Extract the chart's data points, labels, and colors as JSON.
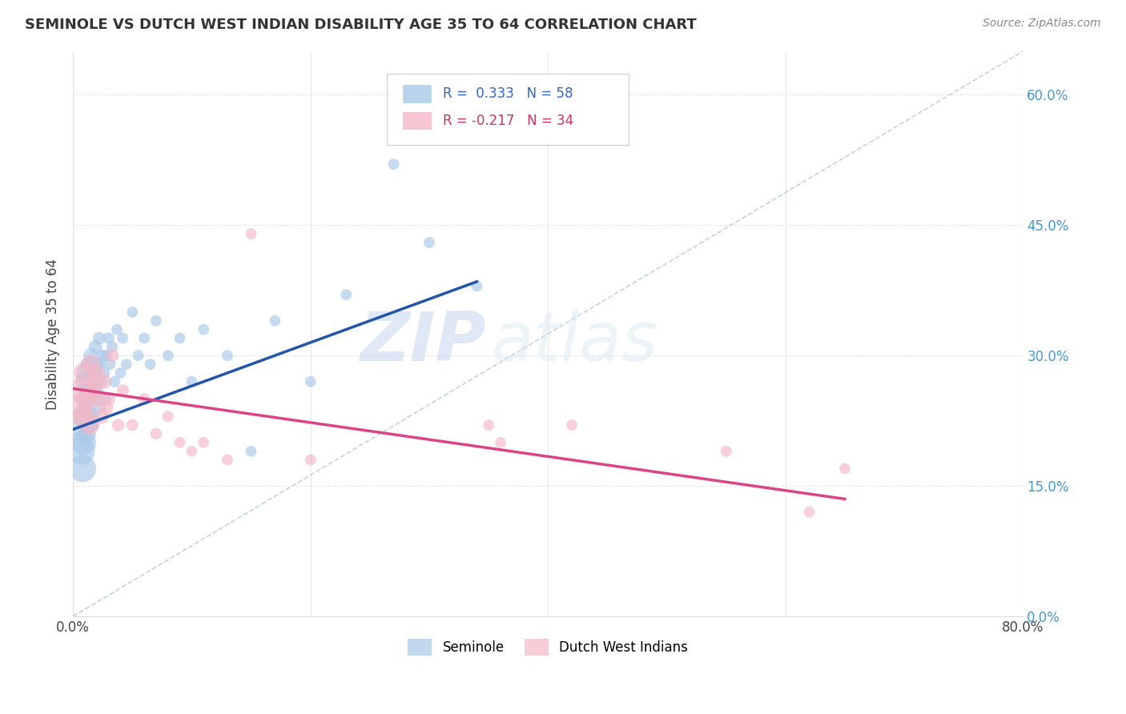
{
  "title": "SEMINOLE VS DUTCH WEST INDIAN DISABILITY AGE 35 TO 64 CORRELATION CHART",
  "source": "Source: ZipAtlas.com",
  "ylabel": "Disability Age 35 to 64",
  "xlim": [
    0.0,
    0.8
  ],
  "ylim": [
    0.0,
    0.65
  ],
  "xticks": [
    0.0,
    0.1,
    0.2,
    0.3,
    0.4,
    0.5,
    0.6,
    0.7,
    0.8
  ],
  "yticks": [
    0.0,
    0.15,
    0.3,
    0.45,
    0.6
  ],
  "legend_labels": [
    "Seminole",
    "Dutch West Indians"
  ],
  "legend_r_seminole": "R =  0.333",
  "legend_n_seminole": "N = 58",
  "legend_r_dutch": "R = -0.217",
  "legend_n_dutch": "N = 34",
  "seminole_color": "#a8c8e8",
  "dutch_color": "#f4b8c8",
  "seminole_line_color": "#2255aa",
  "dutch_line_color": "#dd4488",
  "ref_line_color": "#b8c8d8",
  "background_color": "#ffffff",
  "grid_color": "#e8e8ec",
  "watermark_zip": "ZIP",
  "watermark_atlas": "atlas",
  "seminole_x": [
    0.005,
    0.007,
    0.008,
    0.009,
    0.01,
    0.01,
    0.01,
    0.01,
    0.011,
    0.012,
    0.012,
    0.013,
    0.014,
    0.014,
    0.015,
    0.015,
    0.016,
    0.016,
    0.017,
    0.018,
    0.018,
    0.019,
    0.02,
    0.02,
    0.021,
    0.022,
    0.022,
    0.023,
    0.024,
    0.025,
    0.026,
    0.027,
    0.028,
    0.03,
    0.031,
    0.033,
    0.035,
    0.037,
    0.04,
    0.042,
    0.045,
    0.05,
    0.055,
    0.06,
    0.065,
    0.07,
    0.08,
    0.09,
    0.1,
    0.11,
    0.13,
    0.15,
    0.17,
    0.2,
    0.23,
    0.27,
    0.3,
    0.34
  ],
  "seminole_y": [
    0.22,
    0.19,
    0.17,
    0.2,
    0.23,
    0.25,
    0.27,
    0.28,
    0.24,
    0.21,
    0.26,
    0.29,
    0.22,
    0.25,
    0.28,
    0.3,
    0.22,
    0.26,
    0.23,
    0.25,
    0.28,
    0.31,
    0.26,
    0.29,
    0.27,
    0.32,
    0.29,
    0.24,
    0.27,
    0.3,
    0.28,
    0.25,
    0.3,
    0.32,
    0.29,
    0.31,
    0.27,
    0.33,
    0.28,
    0.32,
    0.29,
    0.35,
    0.3,
    0.32,
    0.29,
    0.34,
    0.3,
    0.32,
    0.27,
    0.33,
    0.3,
    0.19,
    0.34,
    0.27,
    0.37,
    0.52,
    0.43,
    0.38
  ],
  "seminole_sizes": [
    800,
    600,
    600,
    500,
    500,
    300,
    300,
    250,
    250,
    250,
    200,
    200,
    200,
    180,
    180,
    180,
    160,
    160,
    160,
    150,
    150,
    150,
    140,
    140,
    130,
    130,
    130,
    120,
    120,
    120,
    115,
    115,
    110,
    110,
    110,
    105,
    105,
    100,
    100,
    100,
    100,
    100,
    100,
    100,
    100,
    100,
    100,
    100,
    100,
    100,
    100,
    100,
    100,
    100,
    100,
    100,
    100,
    100
  ],
  "dutch_x": [
    0.005,
    0.007,
    0.009,
    0.01,
    0.012,
    0.014,
    0.015,
    0.017,
    0.018,
    0.02,
    0.022,
    0.024,
    0.026,
    0.028,
    0.03,
    0.033,
    0.038,
    0.042,
    0.05,
    0.06,
    0.07,
    0.08,
    0.09,
    0.1,
    0.11,
    0.13,
    0.15,
    0.2,
    0.35,
    0.36,
    0.42,
    0.55,
    0.62,
    0.65
  ],
  "dutch_y": [
    0.24,
    0.26,
    0.23,
    0.28,
    0.25,
    0.22,
    0.29,
    0.26,
    0.27,
    0.28,
    0.25,
    0.23,
    0.27,
    0.24,
    0.25,
    0.3,
    0.22,
    0.26,
    0.22,
    0.25,
    0.21,
    0.23,
    0.2,
    0.19,
    0.2,
    0.18,
    0.44,
    0.18,
    0.22,
    0.2,
    0.22,
    0.19,
    0.12,
    0.17
  ],
  "dutch_sizes": [
    600,
    500,
    400,
    400,
    350,
    300,
    280,
    250,
    230,
    220,
    200,
    180,
    170,
    160,
    150,
    140,
    130,
    120,
    115,
    110,
    110,
    105,
    100,
    100,
    100,
    100,
    100,
    100,
    100,
    100,
    100,
    100,
    100,
    100
  ],
  "blue_line_x": [
    0.0,
    0.34
  ],
  "blue_line_y": [
    0.215,
    0.385
  ],
  "pink_line_x": [
    0.0,
    0.65
  ],
  "pink_line_y": [
    0.262,
    0.135
  ]
}
